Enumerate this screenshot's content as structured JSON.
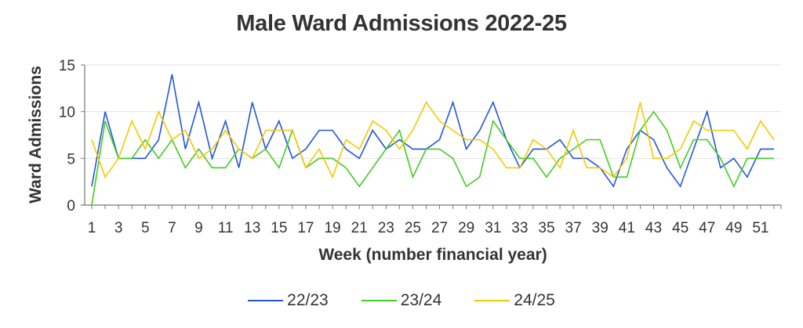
{
  "chart_data": {
    "type": "line",
    "title": "Male Ward Admissions 2022-25",
    "xlabel": "Week (number financial year)",
    "ylabel": "Ward Admissions",
    "ylim": [
      0,
      15
    ],
    "yticks": [
      0,
      5,
      10,
      15
    ],
    "grid": true,
    "legend_position": "bottom",
    "x": [
      1,
      2,
      3,
      4,
      5,
      6,
      7,
      8,
      9,
      10,
      11,
      12,
      13,
      14,
      15,
      16,
      17,
      18,
      19,
      20,
      21,
      22,
      23,
      24,
      25,
      26,
      27,
      28,
      29,
      30,
      31,
      32,
      33,
      34,
      35,
      36,
      37,
      38,
      39,
      40,
      41,
      42,
      43,
      44,
      45,
      46,
      47,
      48,
      49,
      50,
      51,
      52
    ],
    "xtick_labels": [
      1,
      3,
      5,
      7,
      9,
      11,
      13,
      15,
      17,
      19,
      21,
      23,
      25,
      27,
      29,
      31,
      33,
      35,
      37,
      39,
      41,
      43,
      45,
      47,
      49,
      51
    ],
    "series": [
      {
        "name": "22/23",
        "color": "#2255E0",
        "values": [
          2,
          10,
          5,
          5,
          5,
          7,
          14,
          6,
          11,
          5,
          9,
          4,
          11,
          6,
          9,
          5,
          6,
          8,
          8,
          6,
          5,
          8,
          6,
          7,
          6,
          6,
          7,
          11,
          6,
          8,
          11,
          7,
          4,
          6,
          6,
          7,
          5,
          5,
          4,
          2,
          6,
          8,
          7,
          4,
          2,
          6,
          10,
          4,
          5,
          3,
          6,
          6
        ]
      },
      {
        "name": "23/24",
        "color": "#44CC22",
        "values": [
          0,
          9,
          5,
          5,
          7,
          5,
          7,
          4,
          6,
          4,
          4,
          6,
          5,
          6,
          4,
          8,
          4,
          5,
          5,
          4,
          2,
          4,
          6,
          8,
          3,
          6,
          6,
          5,
          2,
          3,
          9,
          7,
          5,
          5,
          3,
          5,
          6,
          7,
          7,
          3,
          3,
          8,
          10,
          8,
          4,
          7,
          7,
          5,
          2,
          5,
          5,
          5
        ]
      },
      {
        "name": "24/25",
        "color": "#F5C800",
        "values": [
          7,
          3,
          5,
          9,
          6,
          10,
          7,
          8,
          5,
          6,
          8,
          6,
          5,
          8,
          8,
          8,
          4,
          6,
          3,
          7,
          6,
          9,
          8,
          6,
          8,
          11,
          9,
          8,
          7,
          7,
          6,
          4,
          4,
          7,
          6,
          4,
          8,
          4,
          4,
          3,
          5,
          11,
          5,
          5,
          6,
          9,
          8,
          8,
          8,
          6,
          9,
          7
        ]
      }
    ]
  },
  "legend": {
    "items": [
      {
        "label": "22/23",
        "color": "#2255E0"
      },
      {
        "label": "23/24",
        "color": "#44CC22"
      },
      {
        "label": "24/25",
        "color": "#F5C800"
      }
    ]
  }
}
